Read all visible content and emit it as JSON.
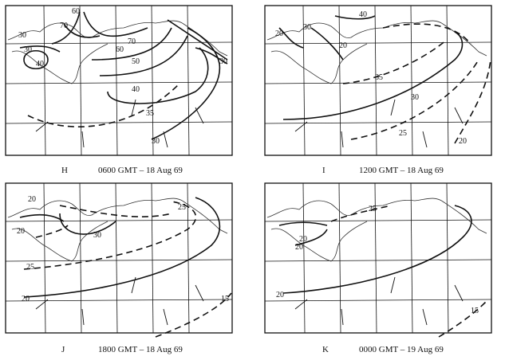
{
  "panels": [
    {
      "letter": "H",
      "time": "0600 GMT – 18 Aug 69",
      "labels": [
        "60",
        "70",
        "30",
        "30",
        "40",
        "70",
        "60",
        "50",
        "40",
        "35",
        "30",
        "30"
      ]
    },
    {
      "letter": "I",
      "time": "1200 GMT – 18 Aug 69",
      "labels": [
        "40",
        "20",
        "30",
        "20",
        "35",
        "30",
        "25",
        "20"
      ]
    },
    {
      "letter": "J",
      "time": "1800 GMT – 18 Aug 69",
      "labels": [
        "20",
        "20",
        "30",
        "25",
        "25",
        "20",
        "15"
      ]
    },
    {
      "letter": "K",
      "time": "0000 GMT – 19 Aug 69",
      "labels": [
        "20",
        "25",
        "20",
        "20",
        "15"
      ]
    }
  ],
  "colors": {
    "ink": "#111111",
    "paper": "#ffffff"
  }
}
